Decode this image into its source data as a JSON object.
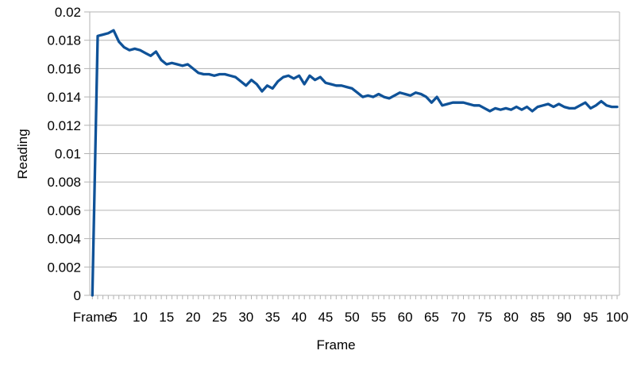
{
  "window": {
    "background_color": "#ffffff"
  },
  "colors": {
    "series_line": "#0f5298",
    "gridline": "#b3b3b3",
    "axis": "#b3b3b3",
    "text": "#000000",
    "background": "#ffffff"
  },
  "chart_data": {
    "type": "line",
    "title": "",
    "xlabel": "Frame",
    "ylabel": "Reading",
    "legend": "none",
    "grid": "horizontal",
    "ylim": [
      0,
      0.02
    ],
    "y_ticks": [
      0,
      0.002,
      0.004,
      0.006,
      0.008,
      0.01,
      0.012,
      0.014,
      0.016,
      0.018,
      0.02
    ],
    "y_tick_labels": [
      "0",
      "0.002",
      "0.004",
      "0.006",
      "0.008",
      "0.01",
      "0.012",
      "0.014",
      "0.016",
      "0.018",
      "0.02"
    ],
    "x_tick_labels": [
      "Frame",
      "5",
      "10",
      "15",
      "20",
      "25",
      "30",
      "35",
      "40",
      "45",
      "50",
      "55",
      "60",
      "65",
      "70",
      "75",
      "80",
      "85",
      "90",
      "95",
      "100"
    ],
    "x_tick_frames": [
      1,
      5,
      10,
      15,
      20,
      25,
      30,
      35,
      40,
      45,
      50,
      55,
      60,
      65,
      70,
      75,
      80,
      85,
      90,
      95,
      100
    ],
    "x_count": 100,
    "series": [
      {
        "name": "Reading",
        "color": "#0f5298",
        "values": [
          0.0,
          0.0183,
          0.0184,
          0.0185,
          0.0187,
          0.0179,
          0.0175,
          0.0173,
          0.0174,
          0.0173,
          0.0171,
          0.0169,
          0.0172,
          0.0166,
          0.0163,
          0.0164,
          0.0163,
          0.0162,
          0.0163,
          0.016,
          0.0157,
          0.0156,
          0.0156,
          0.0155,
          0.0156,
          0.0156,
          0.0155,
          0.0154,
          0.0151,
          0.0148,
          0.0152,
          0.0149,
          0.0144,
          0.0148,
          0.0146,
          0.0151,
          0.0154,
          0.0155,
          0.0153,
          0.0155,
          0.0149,
          0.0155,
          0.0152,
          0.0154,
          0.015,
          0.0149,
          0.0148,
          0.0148,
          0.0147,
          0.0146,
          0.0143,
          0.014,
          0.0141,
          0.014,
          0.0142,
          0.014,
          0.0139,
          0.0141,
          0.0143,
          0.0142,
          0.0141,
          0.0143,
          0.0142,
          0.014,
          0.0136,
          0.014,
          0.0134,
          0.0135,
          0.0136,
          0.0136,
          0.0136,
          0.0135,
          0.0134,
          0.0134,
          0.0132,
          0.013,
          0.0132,
          0.0131,
          0.0132,
          0.0131,
          0.0133,
          0.0131,
          0.0133,
          0.013,
          0.0133,
          0.0134,
          0.0135,
          0.0133,
          0.0135,
          0.0133,
          0.0132,
          0.0132,
          0.0134,
          0.0136,
          0.0132,
          0.0134,
          0.0137,
          0.0134,
          0.0133,
          0.0133
        ]
      }
    ]
  }
}
